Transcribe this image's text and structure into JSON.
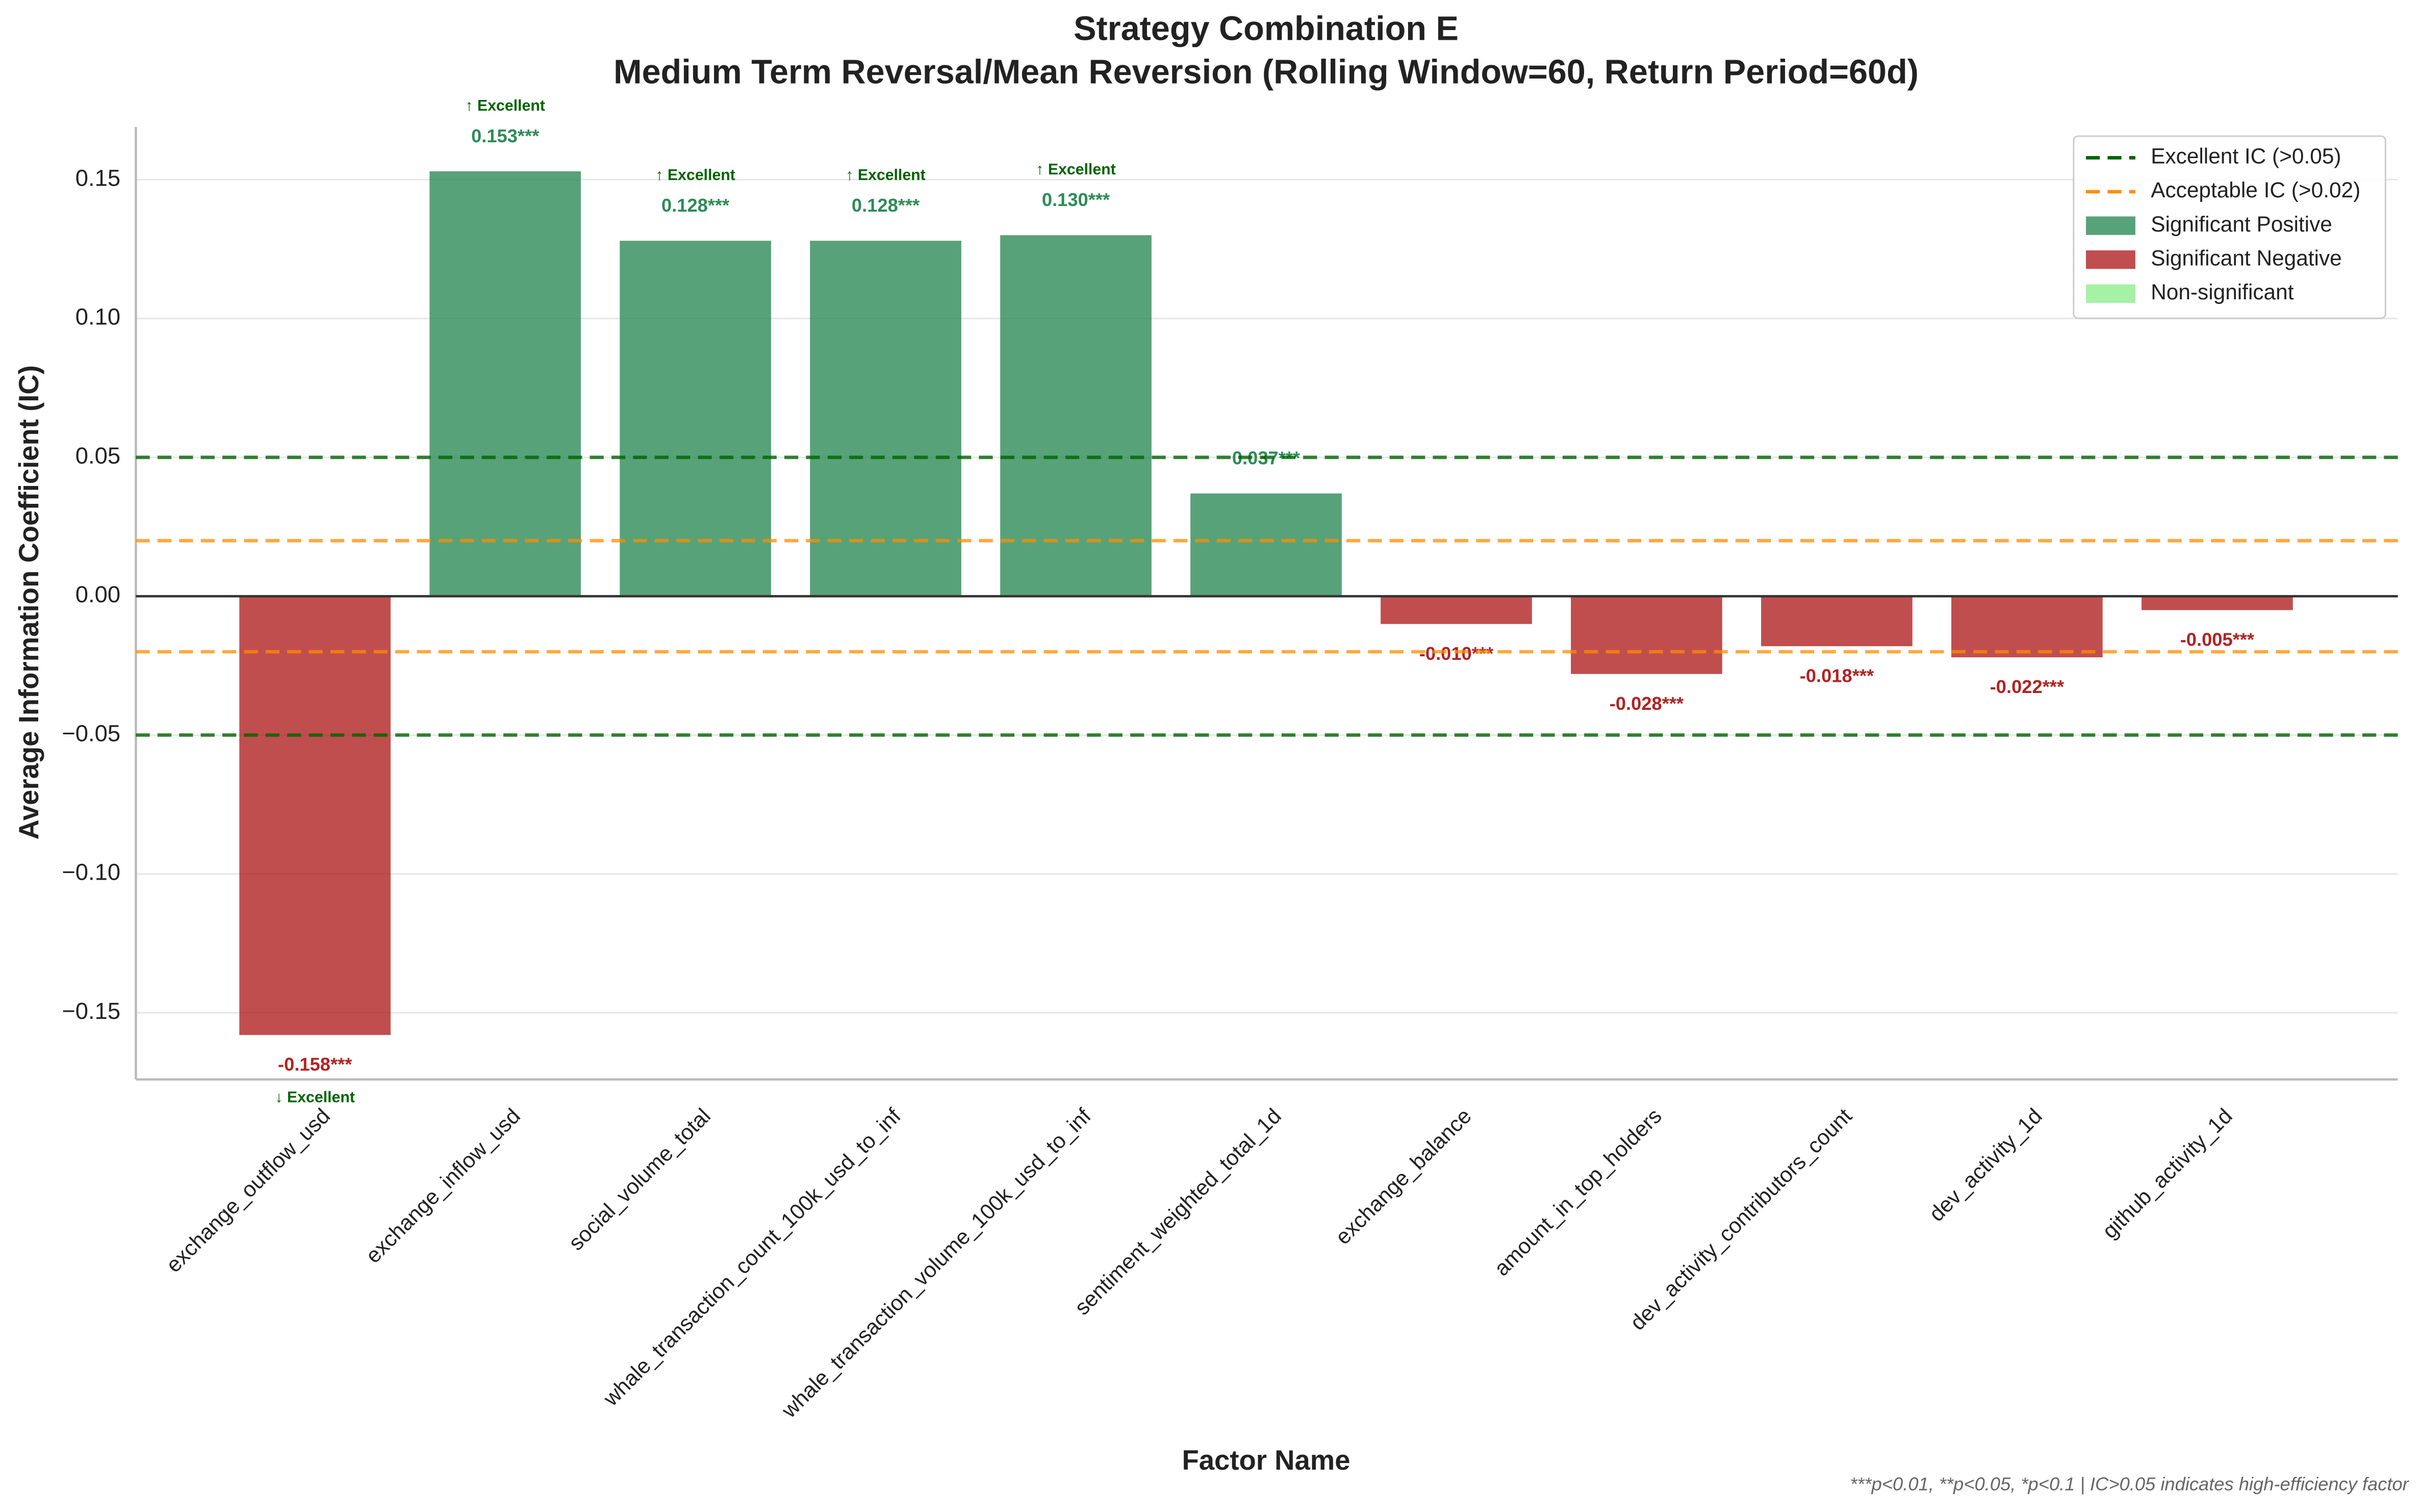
{
  "chart_data": {
    "type": "bar",
    "title": "Strategy Combination E",
    "subtitle": "Medium Term Reversal/Mean Reversion (Rolling Window=60, Return Period=60d)",
    "x_label": "Factor Name",
    "y_label": "Average Information Coefficient (IC)",
    "footnote": "***p<0.01, **p<0.05, *p<0.1 | IC>0.05 indicates high-efficiency factor",
    "categories": [
      "exchange_outflow_usd",
      "exchange_inflow_usd",
      "social_volume_total",
      "whale_transaction_count_100k_usd_to_inf",
      "whale_transaction_volume_100k_usd_to_inf",
      "sentiment_weighted_total_1d",
      "exchange_balance",
      "amount_in_top_holders",
      "dev_activity_contributors_count",
      "dev_activity_1d",
      "github_activity_1d"
    ],
    "values": [
      -0.158,
      0.153,
      0.128,
      0.128,
      0.13,
      0.037,
      -0.01,
      -0.028,
      -0.018,
      -0.022,
      -0.005
    ],
    "value_labels": [
      "-0.158***",
      "0.153***",
      "0.128***",
      "0.128***",
      "0.130***",
      "0.037***",
      "-0.010***",
      "-0.028***",
      "-0.018***",
      "-0.022***",
      "-0.005***"
    ],
    "value_annotations": [
      "↓ Excellent",
      "↑ Excellent",
      "↑ Excellent",
      "↑ Excellent",
      "↑ Excellent",
      null,
      null,
      null,
      null,
      null,
      null
    ],
    "colors": [
      "#b22222",
      "#2e8b57",
      "#2e8b57",
      "#2e8b57",
      "#2e8b57",
      "#2e8b57",
      "#b22222",
      "#b22222",
      "#b22222",
      "#b22222",
      "#b22222"
    ],
    "reference_lines": [
      {
        "name": "Excellent IC (>0.05)",
        "color": "#006400",
        "values": [
          0.05,
          -0.05
        ]
      },
      {
        "name": "Acceptable IC (>0.02)",
        "color": "#ff8c00",
        "values": [
          0.02,
          -0.02
        ]
      }
    ],
    "bar_legend": [
      {
        "name": "Significant Positive",
        "color": "#2e8b57"
      },
      {
        "name": "Significant Negative",
        "color": "#b22222"
      },
      {
        "name": "Non-significant",
        "color": "#90ee90"
      }
    ],
    "ylim": [
      -0.174,
      0.169
    ],
    "yticks": [
      {
        "value": -0.15,
        "label": "−0.15"
      },
      {
        "value": -0.1,
        "label": "−0.10"
      },
      {
        "value": -0.05,
        "label": "−0.05"
      },
      {
        "value": 0,
        "label": "0.00"
      },
      {
        "value": 0.05,
        "label": "0.05"
      },
      {
        "value": 0.1,
        "label": "0.10"
      },
      {
        "value": 0.15,
        "label": "0.15"
      }
    ],
    "grid": true,
    "legend": "upper right"
  }
}
